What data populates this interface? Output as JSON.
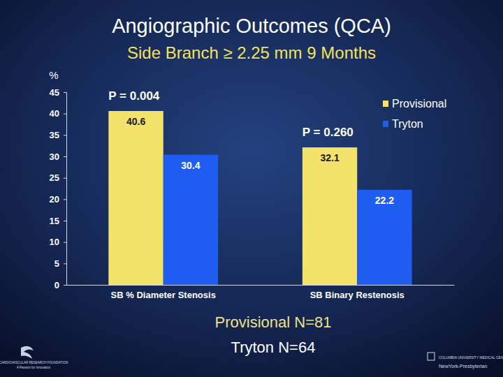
{
  "chart_data": {
    "type": "bar",
    "title": "Angiographic Outcomes (QCA)",
    "subtitle": "Side Branch ≥ 2.25 mm 9 Months",
    "y_label": "%",
    "categories": [
      "SB % Diameter Stenosis",
      "SB Binary Restenosis"
    ],
    "series": [
      {
        "name": "Provisional",
        "color": "#f4e36a",
        "values": [
          40.6,
          32.1
        ]
      },
      {
        "name": "Tryton",
        "color": "#1f5cf0",
        "values": [
          30.4,
          22.2
        ]
      }
    ],
    "p_values": [
      "P = 0.004",
      "P = 0.260"
    ],
    "notes": [
      "Provisional N=81",
      "Tryton N=64"
    ],
    "logos": [
      "CARDIOVASCULAR RESEARCH FOUNDATION",
      "A Passion for Innovation",
      "COLUMBIA UNIVERSITY MEDICAL CENTER",
      "NewYork-Presbyterian"
    ],
    "ylim": [
      0,
      45
    ],
    "yticks": [
      0,
      5,
      10,
      15,
      20,
      25,
      30,
      35,
      40,
      45
    ],
    "grid": false,
    "legend": "top-right",
    "data_labels": true
  }
}
